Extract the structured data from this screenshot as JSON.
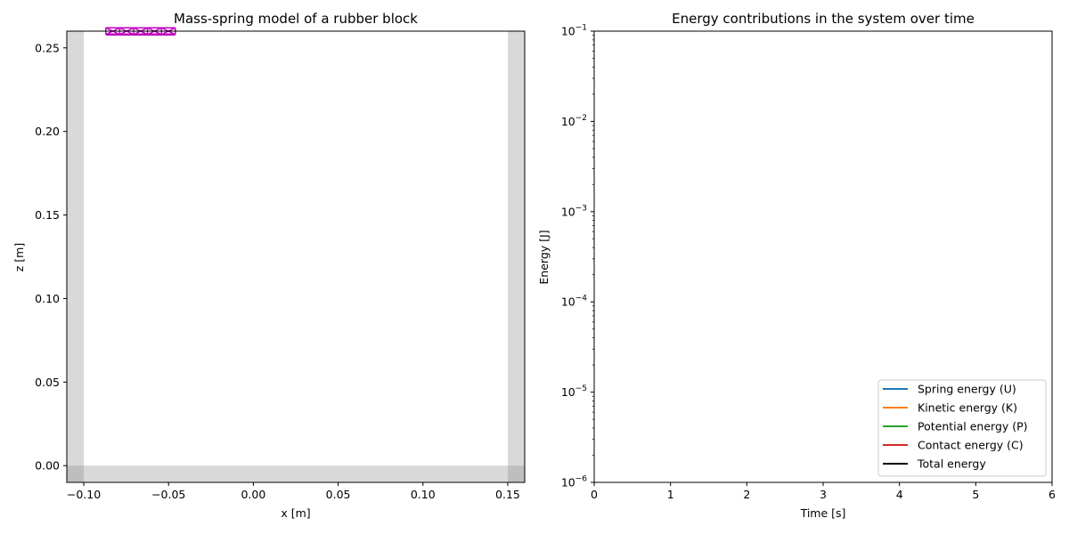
{
  "chart_data": [
    {
      "type": "scatter",
      "title": "Mass-spring model of a rubber block",
      "xlabel": "x [m]",
      "ylabel": "z [m]",
      "xlim": [
        -0.11,
        0.16
      ],
      "ylim": [
        -0.01,
        0.26
      ],
      "xticks": [
        -0.1,
        -0.05,
        0.0,
        0.05,
        0.1,
        0.15
      ],
      "xtick_labels": [
        "−0.10",
        "−0.05",
        "0.00",
        "0.05",
        "0.10",
        "0.15"
      ],
      "yticks": [
        0.0,
        0.05,
        0.1,
        0.15,
        0.2,
        0.25
      ],
      "ytick_labels": [
        "0.00",
        "0.05",
        "0.10",
        "0.15",
        "0.20",
        "0.25"
      ],
      "walls": [
        {
          "name": "left-wall",
          "x": [
            -0.11,
            -0.1
          ],
          "z": [
            -0.01,
            0.26
          ]
        },
        {
          "name": "right-wall",
          "x": [
            0.15,
            0.16
          ],
          "z": [
            -0.01,
            0.26
          ]
        },
        {
          "name": "floor",
          "x": [
            -0.11,
            0.16
          ],
          "z": [
            -0.01,
            0.0
          ]
        }
      ],
      "block": {
        "color": "#bf00bf",
        "x_range": [
          -0.087,
          -0.046
        ],
        "z_range": [
          0.258,
          0.262
        ],
        "x_nodes": [
          -0.087,
          -0.0788,
          -0.0706,
          -0.0624,
          -0.0542,
          -0.046
        ]
      },
      "wall_color": "#808080"
    },
    {
      "type": "line",
      "title": "Energy contributions in the system over time",
      "xlabel": "Time [s]",
      "ylabel": "Energy [J]",
      "xlim": [
        0,
        6
      ],
      "ylim": [
        1e-06,
        0.1
      ],
      "yscale": "log",
      "xticks": [
        0,
        1,
        2,
        3,
        4,
        5,
        6
      ],
      "xtick_labels": [
        "0",
        "1",
        "2",
        "3",
        "4",
        "5",
        "6"
      ],
      "ytick_exponents": [
        -6,
        -5,
        -4,
        -3,
        -2,
        -1
      ],
      "ytick_base": "10",
      "grid": false,
      "legend_position": "lower-right",
      "series": [
        {
          "name": "Spring energy (U)",
          "color": "#1f77b4",
          "x": [],
          "y": []
        },
        {
          "name": "Kinetic energy (K)",
          "color": "#ff7f0e",
          "x": [],
          "y": []
        },
        {
          "name": "Potential energy (P)",
          "color": "#2ca02c",
          "x": [],
          "y": []
        },
        {
          "name": "Contact energy (C)",
          "color": "#d62728",
          "x": [],
          "y": []
        },
        {
          "name": "Total energy",
          "color": "#000000",
          "x": [],
          "y": []
        }
      ]
    }
  ]
}
